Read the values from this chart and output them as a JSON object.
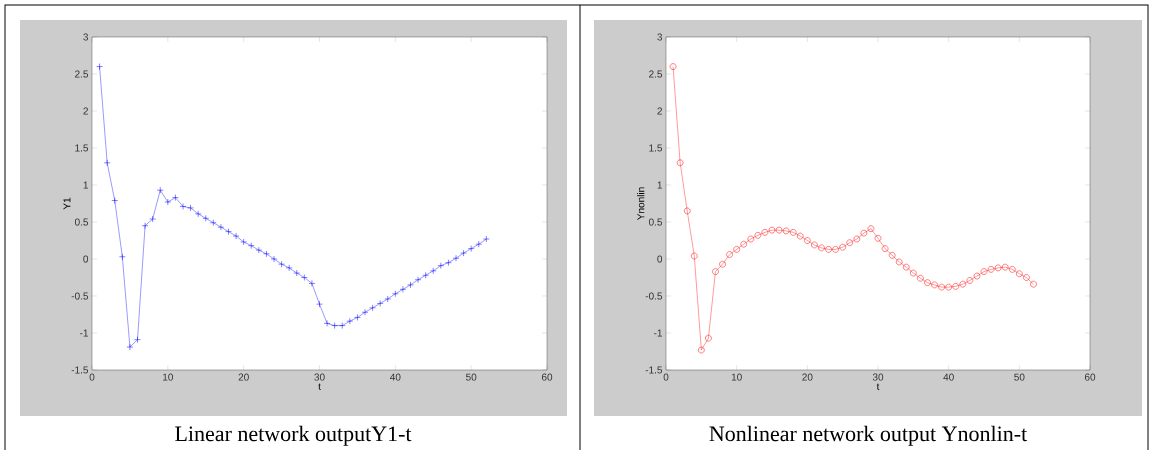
{
  "chart_data": [
    {
      "type": "line",
      "xlabel": "t",
      "ylabel": "Y1",
      "annotations": [
        "Linear network outputY1-t"
      ],
      "x": [
        1,
        2,
        3,
        4,
        5,
        6,
        7,
        8,
        9,
        10,
        11,
        12,
        13,
        14,
        15,
        16,
        17,
        18,
        19,
        20,
        21,
        22,
        23,
        24,
        25,
        26,
        27,
        28,
        29,
        30,
        31,
        32,
        33,
        34,
        35,
        36,
        37,
        38,
        39,
        40,
        41,
        42,
        43,
        44,
        45,
        46,
        47,
        48,
        49,
        50,
        51,
        52
      ],
      "series": [
        {
          "color": "#0000ff",
          "values": [
            2.6,
            1.3,
            0.79,
            0.03,
            -1.19,
            -1.09,
            0.45,
            0.54,
            0.93,
            0.77,
            0.83,
            0.71,
            0.69,
            0.61,
            0.55,
            0.49,
            0.43,
            0.37,
            0.31,
            0.23,
            0.18,
            0.12,
            0.07,
            0.0,
            -0.07,
            -0.12,
            -0.19,
            -0.25,
            -0.33,
            -0.61,
            -0.87,
            -0.9,
            -0.9,
            -0.84,
            -0.79,
            -0.72,
            -0.66,
            -0.6,
            -0.54,
            -0.47,
            -0.41,
            -0.35,
            -0.28,
            -0.22,
            -0.16,
            -0.09,
            -0.05,
            0.01,
            0.08,
            0.14,
            0.2,
            0.27
          ]
        }
      ],
      "marker": "cross",
      "xlim": [
        0,
        60
      ],
      "ylim": [
        -1.5,
        3
      ],
      "xticks": [
        0,
        10,
        20,
        30,
        40,
        50,
        60
      ],
      "yticks": [
        -1.5,
        -1,
        -0.5,
        0,
        0.5,
        1,
        1.5,
        2,
        2.5,
        3
      ]
    },
    {
      "type": "line",
      "xlabel": "t",
      "ylabel": "Ynonlin",
      "annotations": [
        "Nonlinear network output Ynonlin-t"
      ],
      "x": [
        1,
        2,
        3,
        4,
        5,
        6,
        7,
        8,
        9,
        10,
        11,
        12,
        13,
        14,
        15,
        16,
        17,
        18,
        19,
        20,
        21,
        22,
        23,
        24,
        25,
        26,
        27,
        28,
        29,
        30,
        31,
        32,
        33,
        34,
        35,
        36,
        37,
        38,
        39,
        40,
        41,
        42,
        43,
        44,
        45,
        46,
        47,
        48,
        49,
        50,
        51,
        52
      ],
      "series": [
        {
          "color": "#ff0000",
          "values": [
            2.6,
            1.3,
            0.65,
            0.04,
            -1.23,
            -1.07,
            -0.17,
            -0.07,
            0.06,
            0.13,
            0.2,
            0.27,
            0.32,
            0.36,
            0.39,
            0.39,
            0.38,
            0.36,
            0.31,
            0.25,
            0.19,
            0.15,
            0.13,
            0.13,
            0.16,
            0.22,
            0.27,
            0.35,
            0.41,
            0.28,
            0.14,
            0.05,
            -0.04,
            -0.11,
            -0.19,
            -0.26,
            -0.32,
            -0.35,
            -0.38,
            -0.38,
            -0.37,
            -0.34,
            -0.29,
            -0.23,
            -0.17,
            -0.14,
            -0.12,
            -0.11,
            -0.14,
            -0.2,
            -0.25,
            -0.34
          ]
        }
      ],
      "marker": "circle",
      "xlim": [
        0,
        60
      ],
      "ylim": [
        -1.5,
        3
      ],
      "xticks": [
        0,
        10,
        20,
        30,
        40,
        50,
        60
      ],
      "yticks": [
        -1.5,
        -1,
        -0.5,
        0,
        0.5,
        1,
        1.5,
        2,
        2.5,
        3
      ]
    }
  ]
}
